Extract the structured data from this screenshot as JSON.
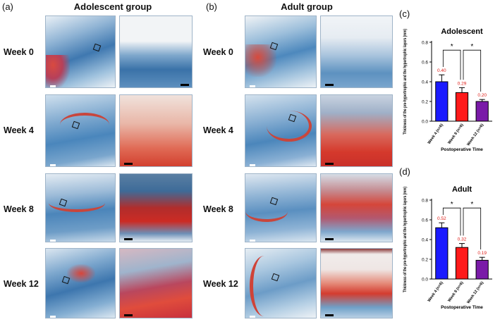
{
  "panels": {
    "a": {
      "letter": "(a)",
      "title": "Adolescent group"
    },
    "b": {
      "letter": "(b)",
      "title": "Adult group"
    },
    "c": {
      "letter": "(c)"
    },
    "d": {
      "letter": "(d)"
    }
  },
  "weeks": [
    "Week 0",
    "Week 4",
    "Week 8",
    "Week 12"
  ],
  "stain_colors": {
    "blue": "#3f78b0",
    "light_blue": "#a8c8e0",
    "red": "#d0302c",
    "white": "#f4f2ee"
  },
  "chart_data": [
    {
      "type": "bar",
      "title": "Adolescent",
      "categories": [
        "Week 4 (n=6)",
        "Week 8 (n=6)",
        "Week 12 (n=6)"
      ],
      "values": [
        0.4,
        0.29,
        0.2
      ],
      "value_labels": [
        "0.40",
        "0.29",
        "0.20"
      ],
      "errors": [
        0.07,
        0.05,
        0.02
      ],
      "colors": [
        "#1a1aff",
        "#ff1a1a",
        "#7a1aa8"
      ],
      "ylabel": "Thickness of the pre-hypertrophic and the hypertrophic layers (mm)",
      "xlabel": "Postoperative Time",
      "ylim": [
        0,
        0.8
      ],
      "yticks": [
        "0.0",
        "0.2",
        "0.4",
        "0.6",
        "0.8"
      ],
      "significance": [
        "*",
        "*"
      ]
    },
    {
      "type": "bar",
      "title": "Adult",
      "categories": [
        "Week 4 (n=6)",
        "Week 8 (n=6)",
        "Week 12 (n=6)"
      ],
      "values": [
        0.52,
        0.32,
        0.19
      ],
      "value_labels": [
        "0.52",
        "0.32",
        "0.19"
      ],
      "errors": [
        0.05,
        0.04,
        0.03
      ],
      "colors": [
        "#1a1aff",
        "#ff1a1a",
        "#7a1aa8"
      ],
      "ylabel": "Thickness of the pre-hypertrophic and the hypertrophic layers (mm)",
      "xlabel": "Postoperative Time",
      "ylim": [
        0,
        0.8
      ],
      "yticks": [
        "0.0",
        "0.2",
        "0.4",
        "0.6",
        "0.8"
      ],
      "significance": [
        "*",
        "*"
      ]
    }
  ]
}
